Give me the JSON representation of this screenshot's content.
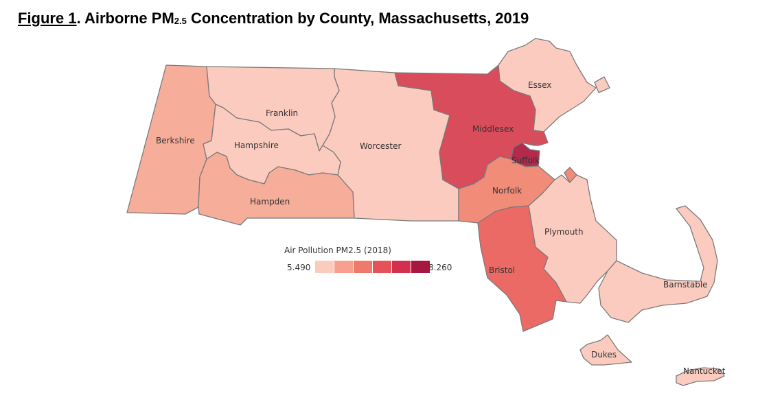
{
  "title": {
    "figure_label": "Figure 1",
    "prefix": ". Airborne PM",
    "subscript": "2.5",
    "suffix": " Concentration by County, Massachusetts, 2019"
  },
  "legend": {
    "title": "Air Pollution PM2.5 (2018)",
    "min": "5.490",
    "max": "8.260",
    "ramp_colors": [
      "#fbcbbf",
      "#f6a08d",
      "#ef7a6b",
      "#e55258",
      "#d2304d",
      "#a61840"
    ]
  },
  "counties": [
    {
      "name": "Berkshire",
      "label": "Berkshire",
      "color": "#f6ad9a"
    },
    {
      "name": "Franklin",
      "label": "Franklin",
      "color": "#fbcbbf"
    },
    {
      "name": "Hampshire",
      "label": "Hampshire",
      "color": "#fbcbbf"
    },
    {
      "name": "Hampden",
      "label": "Hampden",
      "color": "#f6ad9a"
    },
    {
      "name": "Worcester",
      "label": "Worcester",
      "color": "#fbcbbf"
    },
    {
      "name": "Middlesex",
      "label": "Middlesex",
      "color": "#d94c5c"
    },
    {
      "name": "Essex",
      "label": "Essex",
      "color": "#fbcbbf"
    },
    {
      "name": "Suffolk",
      "label": "Suffolk",
      "color": "#b32a4c"
    },
    {
      "name": "Norfolk",
      "label": "Norfolk",
      "color": "#f08c78"
    },
    {
      "name": "Bristol",
      "label": "Bristol",
      "color": "#eb6a66"
    },
    {
      "name": "Plymouth",
      "label": "Plymouth",
      "color": "#fbcbbf"
    },
    {
      "name": "Barnstable",
      "label": "Barnstable",
      "color": "#fbcbbf"
    },
    {
      "name": "Dukes",
      "label": "Dukes",
      "color": "#fbcbbf"
    },
    {
      "name": "Nantucket",
      "label": "Nantucket",
      "color": "#fbcbbf"
    }
  ]
}
